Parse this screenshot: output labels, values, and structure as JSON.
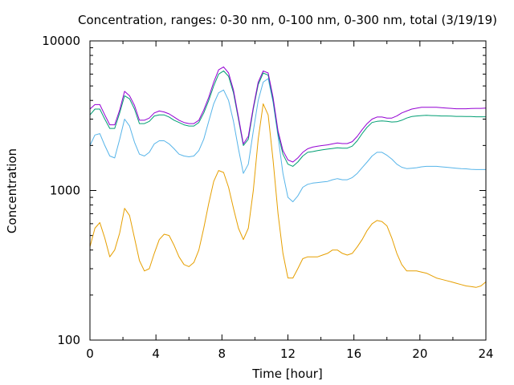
{
  "chart_data": {
    "type": "line",
    "title": "Concentration, ranges: 0-30 nm, 0-100 nm, 0-300 nm, total (3/19/19)",
    "xlabel": "Time [hour]",
    "ylabel": "Concentration",
    "xlim": [
      0,
      24
    ],
    "ylim": [
      100,
      10000
    ],
    "yscale": "log",
    "grid": false,
    "legend": "none",
    "x_ticks": [
      "0",
      "4",
      "8",
      "12",
      "16",
      "20",
      "24"
    ],
    "y_ticks": [
      "100",
      "1000",
      "10000"
    ],
    "series": [
      {
        "color": "#e69f00",
        "x": [
          0,
          0.3,
          0.6,
          0.9,
          1.2,
          1.5,
          1.8,
          2.1,
          2.4,
          2.7,
          3.0,
          3.3,
          3.6,
          3.9,
          4.2,
          4.5,
          4.8,
          5.1,
          5.4,
          5.7,
          6.0,
          6.3,
          6.6,
          6.9,
          7.2,
          7.5,
          7.8,
          8.1,
          8.4,
          8.7,
          9.0,
          9.3,
          9.6,
          9.9,
          10.2,
          10.5,
          10.8,
          11.1,
          11.4,
          11.7,
          12.0,
          12.3,
          12.6,
          12.9,
          13.2,
          13.5,
          13.8,
          14.1,
          14.4,
          14.7,
          15.0,
          15.3,
          15.6,
          15.9,
          16.2,
          16.5,
          16.8,
          17.1,
          17.4,
          17.7,
          18.0,
          18.3,
          18.6,
          18.9,
          19.2,
          19.5,
          19.8,
          20.1,
          20.4,
          20.7,
          21.0,
          21.3,
          21.6,
          21.9,
          22.2,
          22.5,
          22.8,
          23.1,
          23.4,
          23.7,
          24.0
        ],
        "values": [
          420,
          560,
          610,
          480,
          360,
          400,
          520,
          760,
          680,
          480,
          340,
          290,
          300,
          380,
          470,
          510,
          500,
          430,
          360,
          320,
          310,
          330,
          400,
          560,
          820,
          1150,
          1360,
          1320,
          1050,
          760,
          560,
          470,
          560,
          1000,
          2200,
          3800,
          3200,
          1600,
          700,
          380,
          260,
          260,
          300,
          350,
          360,
          360,
          360,
          370,
          380,
          400,
          400,
          380,
          370,
          380,
          420,
          470,
          540,
          600,
          630,
          620,
          580,
          480,
          380,
          320,
          290,
          290,
          290,
          285,
          280,
          270,
          260,
          255,
          250,
          245,
          240,
          235,
          230,
          228,
          225,
          230,
          245
        ]
      },
      {
        "color": "#56b4e9",
        "x": [
          0,
          0.3,
          0.6,
          0.9,
          1.2,
          1.5,
          1.8,
          2.1,
          2.4,
          2.7,
          3.0,
          3.3,
          3.6,
          3.9,
          4.2,
          4.5,
          4.8,
          5.1,
          5.4,
          5.7,
          6.0,
          6.3,
          6.6,
          6.9,
          7.2,
          7.5,
          7.8,
          8.1,
          8.4,
          8.7,
          9.0,
          9.3,
          9.6,
          9.9,
          10.2,
          10.5,
          10.8,
          11.1,
          11.4,
          11.7,
          12.0,
          12.3,
          12.6,
          12.9,
          13.2,
          13.5,
          13.8,
          14.1,
          14.4,
          14.7,
          15.0,
          15.3,
          15.6,
          15.9,
          16.2,
          16.5,
          16.8,
          17.1,
          17.4,
          17.7,
          18.0,
          18.3,
          18.6,
          18.9,
          19.2,
          19.5,
          19.8,
          20.1,
          20.4,
          20.7,
          21.0,
          21.3,
          21.6,
          21.9,
          22.2,
          22.5,
          22.8,
          23.1,
          23.4,
          23.7,
          24.0
        ],
        "values": [
          2000,
          2350,
          2400,
          2000,
          1700,
          1650,
          2200,
          3000,
          2700,
          2100,
          1750,
          1700,
          1800,
          2050,
          2150,
          2150,
          2050,
          1900,
          1750,
          1700,
          1680,
          1700,
          1850,
          2200,
          2900,
          3800,
          4500,
          4700,
          4000,
          2900,
          1900,
          1300,
          1500,
          2500,
          4000,
          5300,
          5600,
          3900,
          2300,
          1300,
          900,
          840,
          920,
          1050,
          1100,
          1120,
          1130,
          1140,
          1150,
          1180,
          1200,
          1180,
          1180,
          1220,
          1300,
          1420,
          1550,
          1700,
          1800,
          1800,
          1720,
          1620,
          1500,
          1430,
          1400,
          1410,
          1420,
          1440,
          1450,
          1450,
          1450,
          1440,
          1430,
          1420,
          1410,
          1400,
          1395,
          1385,
          1380,
          1380,
          1380
        ]
      },
      {
        "color": "#009e73",
        "x": [
          0,
          0.3,
          0.6,
          0.9,
          1.2,
          1.5,
          1.8,
          2.1,
          2.4,
          2.7,
          3.0,
          3.3,
          3.6,
          3.9,
          4.2,
          4.5,
          4.8,
          5.1,
          5.4,
          5.7,
          6.0,
          6.3,
          6.6,
          6.9,
          7.2,
          7.5,
          7.8,
          8.1,
          8.4,
          8.7,
          9.0,
          9.3,
          9.6,
          9.9,
          10.2,
          10.5,
          10.8,
          11.1,
          11.4,
          11.7,
          12.0,
          12.3,
          12.6,
          12.9,
          13.2,
          13.5,
          13.8,
          14.1,
          14.4,
          14.7,
          15.0,
          15.3,
          15.6,
          15.9,
          16.2,
          16.5,
          16.8,
          17.1,
          17.4,
          17.7,
          18.0,
          18.3,
          18.6,
          18.9,
          19.2,
          19.5,
          19.8,
          20.1,
          20.4,
          20.7,
          21.0,
          21.3,
          21.6,
          21.9,
          22.2,
          22.5,
          22.8,
          23.1,
          23.4,
          23.7,
          24.0
        ],
        "values": [
          3200,
          3500,
          3500,
          3000,
          2600,
          2600,
          3300,
          4300,
          4100,
          3500,
          2800,
          2800,
          2900,
          3150,
          3200,
          3200,
          3100,
          2950,
          2850,
          2750,
          2700,
          2700,
          2850,
          3300,
          4000,
          5000,
          6000,
          6300,
          5800,
          4500,
          3000,
          2000,
          2200,
          3500,
          5100,
          6100,
          5900,
          4000,
          2400,
          1750,
          1500,
          1450,
          1550,
          1700,
          1800,
          1820,
          1850,
          1870,
          1890,
          1910,
          1930,
          1920,
          1920,
          1980,
          2150,
          2400,
          2650,
          2850,
          2900,
          2920,
          2900,
          2870,
          2880,
          2950,
          3050,
          3120,
          3150,
          3170,
          3180,
          3170,
          3160,
          3150,
          3150,
          3140,
          3130,
          3130,
          3120,
          3120,
          3110,
          3110,
          3110
        ]
      },
      {
        "color": "#9400d3",
        "x": [
          0,
          0.3,
          0.6,
          0.9,
          1.2,
          1.5,
          1.8,
          2.1,
          2.4,
          2.7,
          3.0,
          3.3,
          3.6,
          3.9,
          4.2,
          4.5,
          4.8,
          5.1,
          5.4,
          5.7,
          6.0,
          6.3,
          6.6,
          6.9,
          7.2,
          7.5,
          7.8,
          8.1,
          8.4,
          8.7,
          9.0,
          9.3,
          9.6,
          9.9,
          10.2,
          10.5,
          10.8,
          11.1,
          11.4,
          11.7,
          12.0,
          12.3,
          12.6,
          12.9,
          13.2,
          13.5,
          13.8,
          14.1,
          14.4,
          14.7,
          15.0,
          15.3,
          15.6,
          15.9,
          16.2,
          16.5,
          16.8,
          17.1,
          17.4,
          17.7,
          18.0,
          18.3,
          18.6,
          18.9,
          19.2,
          19.5,
          19.8,
          20.1,
          20.4,
          20.7,
          21.0,
          21.3,
          21.6,
          21.9,
          22.2,
          22.5,
          22.8,
          23.1,
          23.4,
          23.7,
          24.0
        ],
        "values": [
          3500,
          3750,
          3750,
          3200,
          2750,
          2750,
          3450,
          4600,
          4300,
          3700,
          2950,
          2950,
          3050,
          3300,
          3400,
          3350,
          3250,
          3100,
          2950,
          2850,
          2800,
          2800,
          2950,
          3450,
          4200,
          5300,
          6400,
          6700,
          6100,
          4700,
          3100,
          2050,
          2300,
          3600,
          5300,
          6300,
          6100,
          4200,
          2500,
          1850,
          1600,
          1550,
          1650,
          1800,
          1900,
          1950,
          1980,
          2000,
          2020,
          2050,
          2080,
          2060,
          2060,
          2120,
          2300,
          2550,
          2800,
          3000,
          3100,
          3100,
          3050,
          3050,
          3150,
          3300,
          3400,
          3500,
          3550,
          3600,
          3600,
          3600,
          3600,
          3580,
          3560,
          3540,
          3520,
          3520,
          3520,
          3530,
          3540,
          3540,
          3560
        ]
      }
    ]
  }
}
